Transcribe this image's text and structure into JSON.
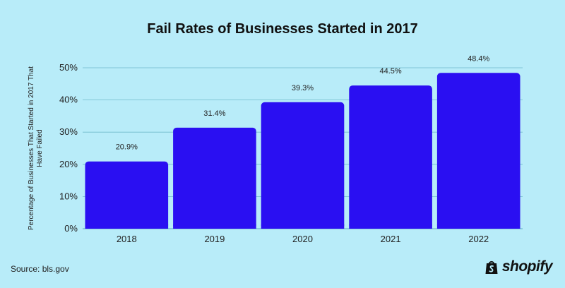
{
  "title": "Fail Rates of Businesses Started in 2017",
  "source": "Source: bls.gov",
  "brand": {
    "name": "shopify",
    "icon": "shopping-bag-icon"
  },
  "colors": {
    "background": "#b8ecf9",
    "bar": "#2a0ff2",
    "grid": "#6fb9cb"
  },
  "chart_data": {
    "type": "bar",
    "title": "Fail Rates of Businesses Started in 2017",
    "xlabel": "",
    "ylabel": "Percentage of Businesses That Started in 2017 That Have Failed",
    "categories": [
      "2018",
      "2019",
      "2020",
      "2021",
      "2022"
    ],
    "values": [
      20.9,
      31.4,
      39.3,
      44.5,
      48.4
    ],
    "data_labels": [
      "20.9%",
      "31.4%",
      "39.3%",
      "44.5%",
      "48.4%"
    ],
    "ylim": [
      0,
      50
    ],
    "yticks": [
      0,
      10,
      20,
      30,
      40,
      50
    ],
    "ytick_labels": [
      "0%",
      "10%",
      "20%",
      "30%",
      "40%",
      "50%"
    ],
    "grid": true,
    "legend": false
  }
}
